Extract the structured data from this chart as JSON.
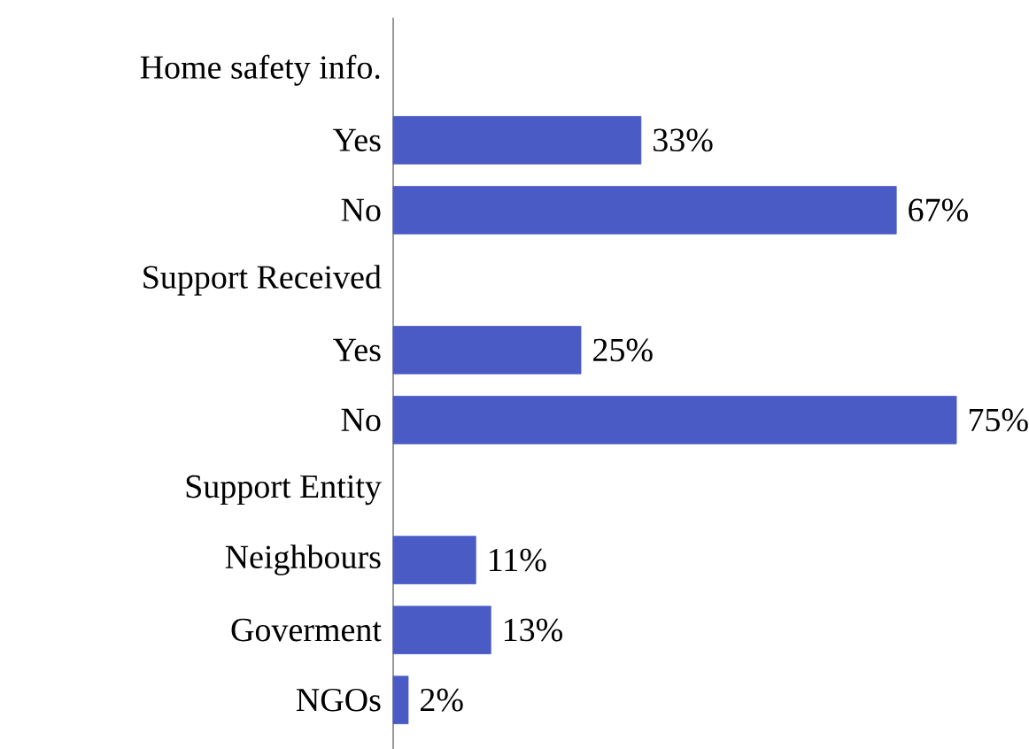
{
  "chart_data": {
    "type": "bar",
    "orientation": "horizontal",
    "categories": [
      "Home safety info.",
      "Yes",
      "No",
      "Support Received",
      "Yes",
      "No",
      "Support Entity",
      "Neighbours",
      "Goverment",
      "NGOs"
    ],
    "values": [
      null,
      33,
      67,
      null,
      25,
      75,
      null,
      11,
      13,
      2
    ],
    "value_labels": [
      null,
      "33%",
      "67%",
      null,
      "25%",
      "75%",
      null,
      "11%",
      "13%",
      "2%"
    ],
    "color": "#4a5bc6"
  }
}
